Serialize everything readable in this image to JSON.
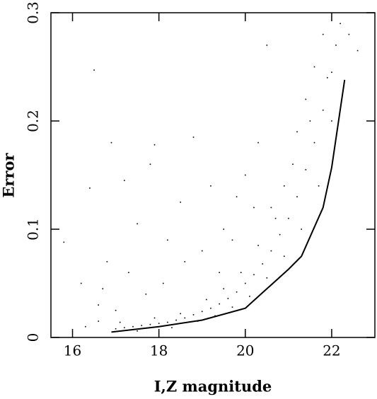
{
  "chart_data": {
    "type": "scatter",
    "xlabel": "I,Z magnitude",
    "ylabel": "Error",
    "xlim": [
      15.5,
      23
    ],
    "ylim": [
      0,
      0.3
    ],
    "xticks": [
      16,
      18,
      20,
      22
    ],
    "yticks": [
      0,
      0.1,
      0.2,
      0.3
    ],
    "color": "#000000",
    "series": [
      {
        "type": "scatter",
        "x": [
          17.0,
          17.2,
          17.4,
          17.6,
          17.8,
          18.0,
          18.2,
          18.4,
          18.6,
          18.8,
          19.0,
          19.2,
          19.4,
          19.6,
          19.8,
          20.0,
          20.2,
          20.4,
          20.6,
          20.8,
          21.0,
          21.2,
          21.4,
          21.6,
          21.8,
          22.0,
          22.1,
          22.2,
          17.1,
          17.5,
          17.9,
          18.3,
          18.5,
          18.9,
          19.1,
          19.3,
          19.5,
          19.7,
          19.9,
          20.1,
          20.3,
          20.5,
          20.7,
          20.9,
          21.1,
          21.3,
          21.5,
          21.7,
          21.9,
          22.0,
          20.6,
          20.9,
          21.2,
          21.4,
          21.6,
          21.8,
          15.8,
          16.2,
          16.4,
          16.5,
          16.6,
          16.8,
          16.9,
          17.2,
          17.5,
          17.8,
          17.9,
          18.2,
          18.5,
          18.8,
          19.2,
          19.5,
          19.8,
          20.0,
          20.3,
          20.5,
          16.7,
          17.0,
          17.3,
          17.7,
          18.1,
          18.6,
          19.0,
          19.4,
          19.7,
          20.2,
          22.6,
          22.4,
          16.3,
          16.6
        ],
        "y": [
          0.008,
          0.009,
          0.01,
          0.011,
          0.012,
          0.013,
          0.014,
          0.016,
          0.018,
          0.021,
          0.024,
          0.027,
          0.031,
          0.036,
          0.042,
          0.05,
          0.058,
          0.068,
          0.08,
          0.095,
          0.11,
          0.13,
          0.155,
          0.18,
          0.21,
          0.245,
          0.27,
          0.29,
          0.014,
          0.006,
          0.018,
          0.009,
          0.022,
          0.015,
          0.035,
          0.02,
          0.045,
          0.028,
          0.06,
          0.038,
          0.085,
          0.055,
          0.11,
          0.075,
          0.16,
          0.1,
          0.2,
          0.14,
          0.24,
          0.2,
          0.12,
          0.14,
          0.19,
          0.22,
          0.25,
          0.28,
          0.088,
          0.05,
          0.138,
          0.247,
          0.03,
          0.07,
          0.18,
          0.145,
          0.105,
          0.16,
          0.178,
          0.09,
          0.125,
          0.185,
          0.14,
          0.1,
          0.13,
          0.15,
          0.18,
          0.27,
          0.045,
          0.025,
          0.06,
          0.04,
          0.05,
          0.07,
          0.08,
          0.06,
          0.09,
          0.12,
          0.265,
          0.28,
          0.01,
          0.015
        ]
      },
      {
        "type": "line",
        "x": [
          16.9,
          18.0,
          19.0,
          20.0,
          20.5,
          21.0,
          21.3,
          21.8,
          22.0,
          22.3
        ],
        "y": [
          0.005,
          0.01,
          0.016,
          0.027,
          0.045,
          0.063,
          0.075,
          0.12,
          0.157,
          0.238
        ]
      }
    ]
  }
}
